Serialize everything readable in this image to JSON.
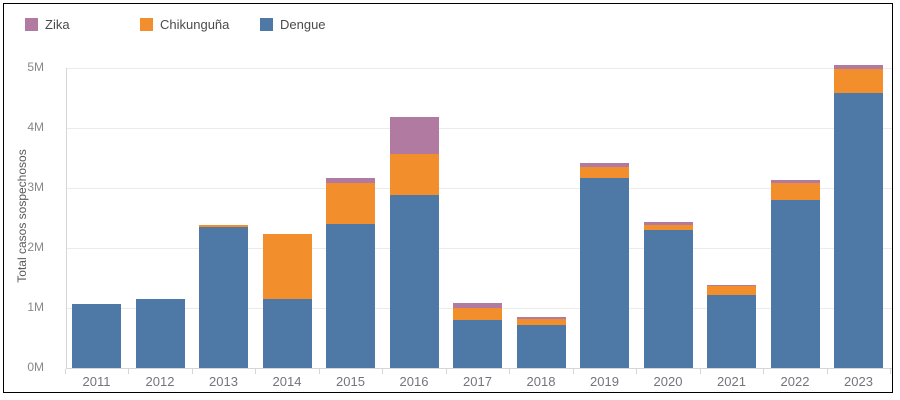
{
  "legend": {
    "items": [
      {
        "key": "zika",
        "label": "Zika",
        "color": "#b07aa1"
      },
      {
        "key": "chikunguna",
        "label": "Chikunguña",
        "color": "#f28e2b"
      },
      {
        "key": "dengue",
        "label": "Dengue",
        "color": "#4e79a7"
      }
    ]
  },
  "y_axis": {
    "title": "Total casos sospechosos",
    "ticks": [
      "5M",
      "4M",
      "3M",
      "2M",
      "1M",
      "0M"
    ]
  },
  "x_axis": {
    "categories": [
      "2011",
      "2012",
      "2013",
      "2014",
      "2015",
      "2016",
      "2017",
      "2018",
      "2019",
      "2020",
      "2021",
      "2022",
      "2023"
    ]
  },
  "chart_data": {
    "type": "bar",
    "stacked": true,
    "title": "",
    "xlabel": "",
    "ylabel": "Total casos sospechosos",
    "ylim": [
      0,
      5000000
    ],
    "ytick_interval": 1000000,
    "grid": true,
    "legend_position": "top-left",
    "categories": [
      2011,
      2012,
      2013,
      2014,
      2015,
      2016,
      2017,
      2018,
      2019,
      2020,
      2021,
      2022,
      2023
    ],
    "series": [
      {
        "name": "Dengue",
        "key": "dengue",
        "color": "#4e79a7",
        "values": [
          1060000,
          1150000,
          2350000,
          1150000,
          2400000,
          2880000,
          800000,
          720000,
          3160000,
          2300000,
          1210000,
          2800000,
          4580000
        ]
      },
      {
        "name": "Chikunguña",
        "key": "chikunguna",
        "color": "#f28e2b",
        "values": [
          0,
          0,
          30000,
          1090000,
          680000,
          680000,
          200000,
          90000,
          190000,
          90000,
          160000,
          290000,
          410000
        ]
      },
      {
        "name": "Zika",
        "key": "zika",
        "color": "#b07aa1",
        "values": [
          0,
          0,
          0,
          0,
          90000,
          630000,
          80000,
          40000,
          60000,
          50000,
          20000,
          40000,
          60000
        ]
      }
    ],
    "stack_order_bottom_to_top": [
      "Dengue",
      "Chikunguña",
      "Zika"
    ]
  }
}
